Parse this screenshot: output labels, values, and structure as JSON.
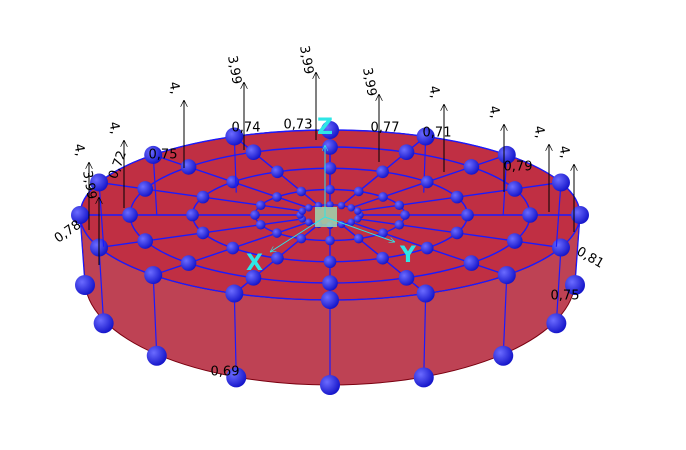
{
  "axes": {
    "x": "X",
    "y": "Y",
    "z": "Z"
  },
  "load_labels": [
    "4,",
    "4,",
    "4,",
    "3,99",
    "3,99",
    "3,99",
    "4,",
    "4,",
    "4,",
    "4,",
    "3,99"
  ],
  "node_labels": [
    "0,78",
    "0,72",
    "0,75",
    "0,74",
    "0,73",
    "0,77",
    "0,71",
    "0,79",
    "0,81",
    "0,75",
    "0,69"
  ]
}
